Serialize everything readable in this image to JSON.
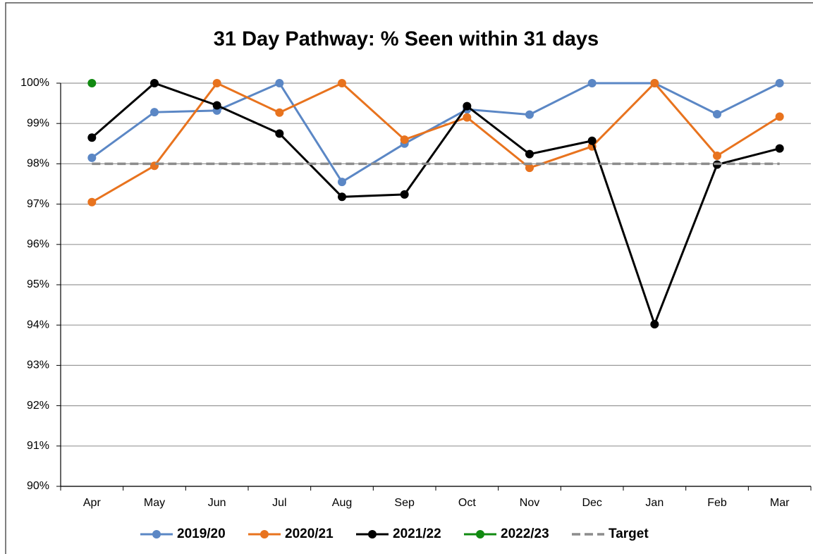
{
  "chart_data": {
    "type": "line",
    "title": "31 Day Pathway:  % Seen within 31 days",
    "categories": [
      "Apr",
      "May",
      "Jun",
      "Jul",
      "Aug",
      "Sep",
      "Oct",
      "Nov",
      "Dec",
      "Jan",
      "Feb",
      "Mar"
    ],
    "series": [
      {
        "name": "2019/20",
        "color": "#5b87c5",
        "values": [
          98.15,
          99.28,
          99.32,
          100,
          97.55,
          98.5,
          99.35,
          99.22,
          100,
          100,
          99.23,
          100
        ]
      },
      {
        "name": "2020/21",
        "color": "#e8731e",
        "values": [
          97.05,
          97.95,
          100,
          99.27,
          100,
          98.6,
          99.15,
          97.9,
          98.43,
          100,
          98.2,
          99.17
        ]
      },
      {
        "name": "2021/22",
        "color": "#000000",
        "values": [
          98.65,
          100,
          99.45,
          98.75,
          97.18,
          97.24,
          99.43,
          98.24,
          98.57,
          94.02,
          97.98,
          98.38
        ]
      },
      {
        "name": "2022/23",
        "color": "#118a11",
        "values": [
          100,
          null,
          null,
          null,
          null,
          null,
          null,
          null,
          null,
          null,
          null,
          null
        ]
      },
      {
        "name": "Target",
        "color": "#8c8c8c",
        "dashed": true,
        "values": [
          98,
          98,
          98,
          98,
          98,
          98,
          98,
          98,
          98,
          98,
          98,
          98
        ]
      }
    ],
    "ylim": [
      90,
      100
    ],
    "yticks": [
      {
        "value": 90,
        "label": "90%"
      },
      {
        "value": 91,
        "label": "91%"
      },
      {
        "value": 92,
        "label": "92%"
      },
      {
        "value": 93,
        "label": "93%"
      },
      {
        "value": 94,
        "label": "94%"
      },
      {
        "value": 95,
        "label": "95%"
      },
      {
        "value": 96,
        "label": "96%"
      },
      {
        "value": 97,
        "label": "97%"
      },
      {
        "value": 98,
        "label": "98%"
      },
      {
        "value": 99,
        "label": "99%"
      },
      {
        "value": 100,
        "label": "100%"
      }
    ],
    "grid": true,
    "legend": "bottom"
  }
}
